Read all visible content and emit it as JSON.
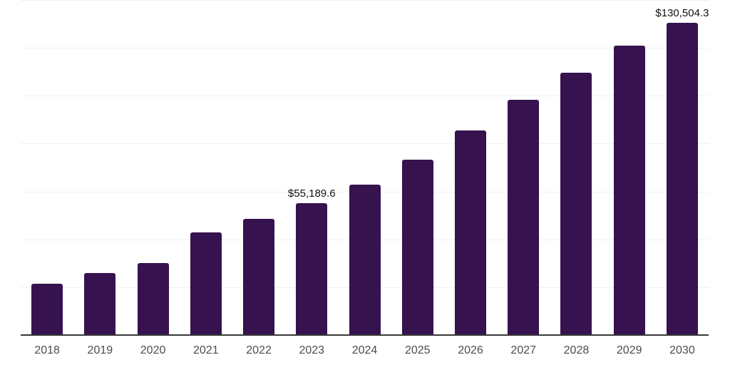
{
  "chart_data": {
    "type": "bar",
    "title": "",
    "xlabel": "",
    "ylabel": "",
    "categories": [
      "2018",
      "2019",
      "2020",
      "2021",
      "2022",
      "2023",
      "2024",
      "2025",
      "2026",
      "2027",
      "2028",
      "2029",
      "2030"
    ],
    "values": [
      21500,
      26000,
      30200,
      43000,
      48700,
      55189.6,
      63000,
      73200,
      85500,
      98300,
      109700,
      121000,
      130504.3
    ],
    "point_labels": [
      "",
      "",
      "",
      "",
      "",
      "$55,189.6",
      "",
      "",
      "",
      "",
      "",
      "",
      "$130,504.3"
    ],
    "ylim": [
      0,
      140000
    ],
    "ytick_step": 20000,
    "y_axis_labels_visible": false,
    "grid": "horizontal",
    "legend": "none",
    "colors": {
      "bar": "#36124F",
      "gridline": "#F0F0F0",
      "axis": "#383838",
      "tick_label": "#4D4D4D",
      "data_label": "#121212",
      "background": "#FFFFFF"
    }
  }
}
